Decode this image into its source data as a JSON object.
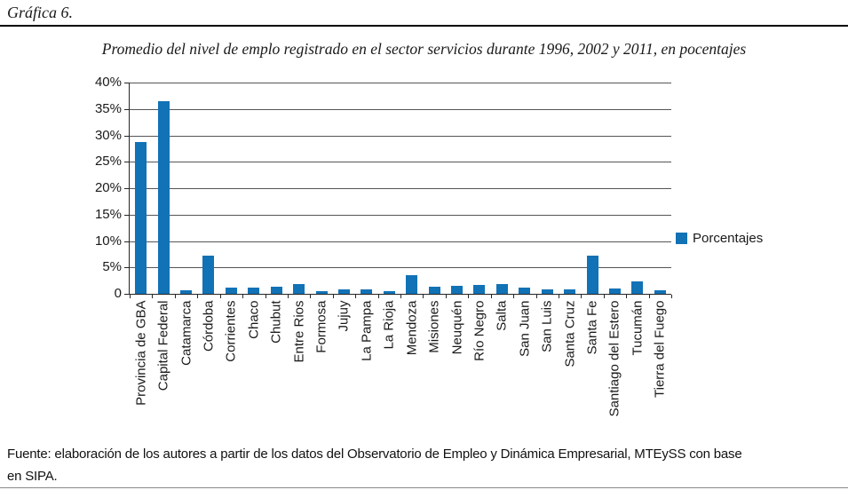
{
  "page": {
    "figure_label": "Gráfica 6.",
    "source_note": "Fuente: elaboración de los autores a partir de los datos del Observatorio de Empleo y Dinámica Empresarial, MTEySS con base en SIPA.",
    "source_note_lines": [
      "Fuente: elaboración de los autores a partir de los datos del Observatorio de Empleo y Dinámica Empresarial, MTEySS con base",
      "en SIPA."
    ]
  },
  "chart_data": {
    "type": "bar",
    "title": "Promedio del nivel de emplo registrado en el sector servicios durante 1996, 2002 y 2011, en pocentajes",
    "xlabel": "",
    "ylabel": "",
    "ylim": [
      0,
      40
    ],
    "ytick_step": 5,
    "ytick_labels": [
      "40%",
      "35%",
      "30%",
      "25%",
      "20%",
      "15%",
      "10%",
      "5%",
      "0"
    ],
    "grid": true,
    "legend_position": "right",
    "categories": [
      "Provincia de GBA",
      "Capital Federal",
      "Catamarca",
      "Córdoba",
      "Corrientes",
      "Chaco",
      "Chubut",
      "Entre Rios",
      "Formosa",
      "Jujuy",
      "La Pampa",
      "La Rioja",
      "Mendoza",
      "Misiones",
      "Neuquén",
      "Río Negro",
      "Salta",
      "San Juan",
      "San Luis",
      "Santa Cruz",
      "Santa Fe",
      "Santiago del Estero",
      "Tucumán",
      "Tierra del Fuego"
    ],
    "series": [
      {
        "name": "Porcentajes",
        "color": "#1172B6",
        "values": [
          28.8,
          36.5,
          0.6,
          7.2,
          1.1,
          1.1,
          1.4,
          1.9,
          0.5,
          0.9,
          0.8,
          0.5,
          3.6,
          1.4,
          1.5,
          1.6,
          1.8,
          1.2,
          0.9,
          0.9,
          7.2,
          1.0,
          2.3,
          0.6
        ]
      }
    ]
  }
}
